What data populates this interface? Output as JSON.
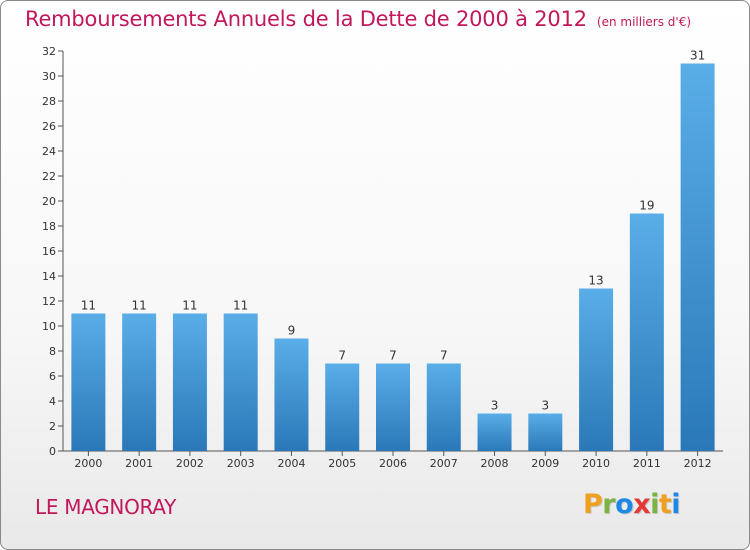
{
  "header": {
    "title": "Remboursements Annuels de la Dette de 2000 à 2012",
    "subtitle": "(en milliers d'€)"
  },
  "footer": {
    "commune": "LE MAGNORAY",
    "logo": [
      "P",
      "r",
      "o",
      "x",
      "i",
      "t",
      "i"
    ]
  },
  "colors": {
    "accent": "#c2185b",
    "bar_top": "#5aaee8",
    "bar_bottom": "#2a78b8",
    "logo_letters": [
      "#f0a020",
      "#7cb342",
      "#1e88e5",
      "#e53935",
      "#7cb342",
      "#f0a020",
      "#1e88e5"
    ]
  },
  "chart_data": {
    "type": "bar",
    "categories": [
      "2000",
      "2001",
      "2002",
      "2003",
      "2004",
      "2005",
      "2006",
      "2007",
      "2008",
      "2009",
      "2010",
      "2011",
      "2012"
    ],
    "values": [
      11,
      11,
      11,
      11,
      9,
      7,
      7,
      7,
      3,
      3,
      13,
      19,
      31
    ],
    "data_labels": [
      "11",
      "11",
      "11",
      "11",
      "9",
      "7",
      "7",
      "7",
      "3",
      "3",
      "13",
      "19",
      "31"
    ],
    "ylim": [
      0,
      32
    ],
    "yticks": [
      "0",
      "2",
      "4",
      "6",
      "8",
      "10",
      "12",
      "14",
      "16",
      "18",
      "20",
      "22",
      "24",
      "26",
      "28",
      "30",
      "32"
    ],
    "grid": false,
    "legend": "none"
  }
}
